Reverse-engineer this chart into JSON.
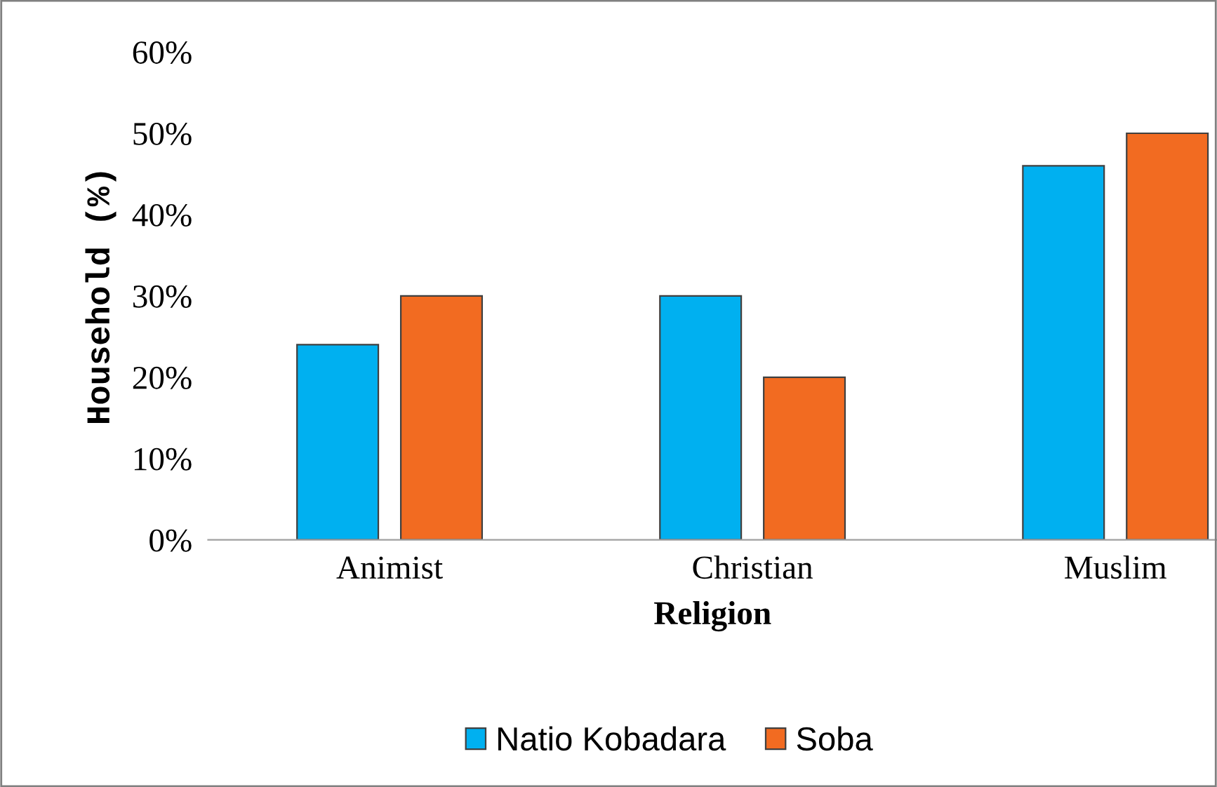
{
  "chart_data": {
    "type": "bar",
    "xlabel": "Religion",
    "ylabel": "Household (%)",
    "categories": [
      "Animist",
      "Christian",
      "Muslim"
    ],
    "series": [
      {
        "name": "Natio Kobadara",
        "color": "#00b0f0",
        "values": [
          24,
          30,
          46
        ]
      },
      {
        "name": "Soba",
        "color": "#f26b21",
        "values": [
          30,
          20,
          50
        ]
      }
    ],
    "ylim": [
      0,
      60
    ],
    "yticks": [
      {
        "value": 0,
        "label": "0%"
      },
      {
        "value": 10,
        "label": "10%"
      },
      {
        "value": 20,
        "label": "20%"
      },
      {
        "value": 30,
        "label": "30%"
      },
      {
        "value": 40,
        "label": "40%"
      },
      {
        "value": 50,
        "label": "50%"
      },
      {
        "value": 60,
        "label": "60%"
      }
    ],
    "grid": false,
    "legend": "bottom"
  }
}
